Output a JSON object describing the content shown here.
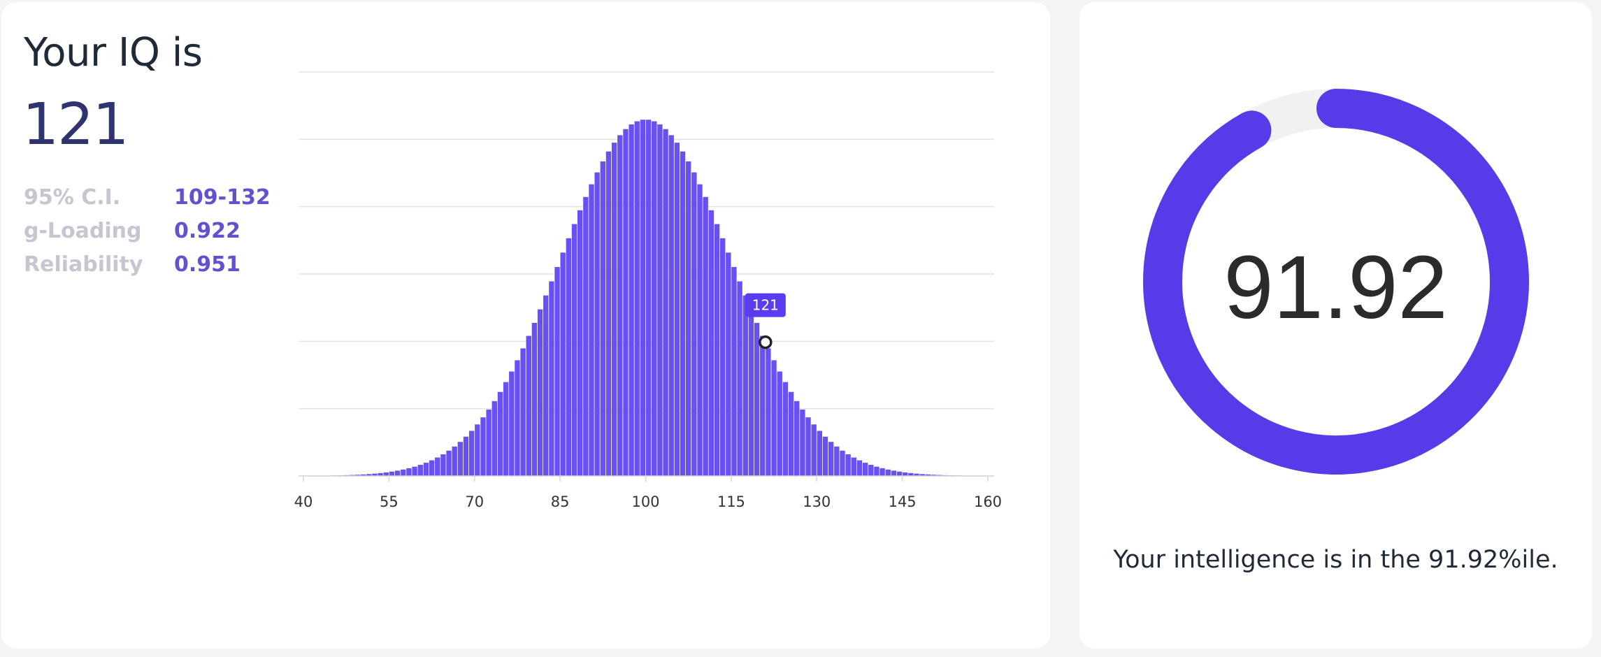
{
  "summary": {
    "heading": "Your IQ is",
    "iq": "121",
    "stats": [
      {
        "label": "95% C.I.",
        "value": "109-132"
      },
      {
        "label": "g-Loading",
        "value": "0.922"
      },
      {
        "label": "Reliability",
        "value": "0.951"
      }
    ]
  },
  "chart_data": {
    "type": "bar",
    "distribution": "normal",
    "mean": 100,
    "sd": 15,
    "bin_width": 1,
    "x_range": [
      40,
      160
    ],
    "x_ticks": [
      40,
      55,
      70,
      85,
      100,
      115,
      130,
      145,
      160
    ],
    "marker": {
      "x": 121,
      "label": "121"
    },
    "grid": true,
    "colors": {
      "bar": "#6a4ff2",
      "marker": "#5b3cf0",
      "grid": "#e3e3e3"
    }
  },
  "gauge": {
    "value": "91.92",
    "percent": 91.92,
    "track_color": "#f1f1f1",
    "fill_color": "#563be9"
  },
  "percentile_text": "Your intelligence is in the 91.92%ile."
}
